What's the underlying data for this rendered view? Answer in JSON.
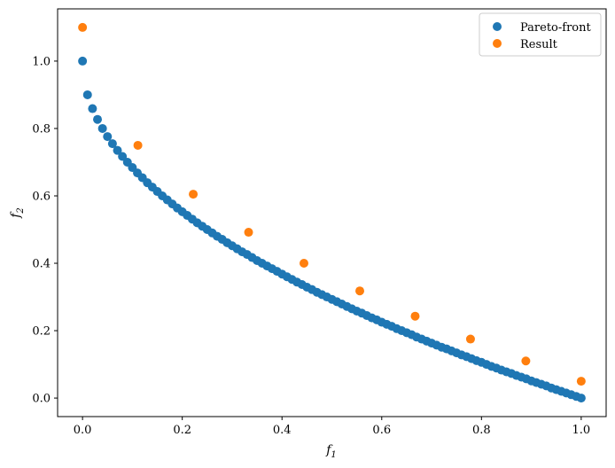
{
  "chart_data": {
    "type": "scatter",
    "title": "",
    "xlabel": "f",
    "xlabel_sub": "1",
    "ylabel": "f",
    "ylabel_sub": "2",
    "xlim": [
      -0.05,
      1.05
    ],
    "ylim": [
      -0.055,
      1.155
    ],
    "x_ticks": [
      0.0,
      0.2,
      0.4,
      0.6,
      0.8,
      1.0
    ],
    "x_tick_labels": [
      "0.0",
      "0.2",
      "0.4",
      "0.6",
      "0.8",
      "1.0"
    ],
    "y_ticks": [
      0.0,
      0.2,
      0.4,
      0.6,
      0.8,
      1.0
    ],
    "y_tick_labels": [
      "0.0",
      "0.2",
      "0.4",
      "0.6",
      "0.8",
      "1.0"
    ],
    "grid": false,
    "legend_position": "top-right",
    "series": [
      {
        "name": "Pareto-front",
        "color": "#1f77b4",
        "x": [
          0.0,
          0.01,
          0.02,
          0.03,
          0.04,
          0.05,
          0.06,
          0.07,
          0.08,
          0.09,
          0.1,
          0.11,
          0.12,
          0.13,
          0.14,
          0.15,
          0.16,
          0.17,
          0.18,
          0.19,
          0.2,
          0.21,
          0.22,
          0.23,
          0.24,
          0.25,
          0.26,
          0.27,
          0.28,
          0.29,
          0.3,
          0.31,
          0.32,
          0.33,
          0.34,
          0.35,
          0.36,
          0.37,
          0.38,
          0.39,
          0.4,
          0.41,
          0.42,
          0.43,
          0.44,
          0.45,
          0.46,
          0.47,
          0.48,
          0.49,
          0.5,
          0.51,
          0.52,
          0.53,
          0.54,
          0.55,
          0.56,
          0.57,
          0.58,
          0.59,
          0.6,
          0.61,
          0.62,
          0.63,
          0.64,
          0.65,
          0.66,
          0.67,
          0.68,
          0.69,
          0.7,
          0.71,
          0.72,
          0.73,
          0.74,
          0.75,
          0.76,
          0.77,
          0.78,
          0.79,
          0.8,
          0.81,
          0.82,
          0.83,
          0.84,
          0.85,
          0.86,
          0.87,
          0.88,
          0.89,
          0.9,
          0.91,
          0.92,
          0.93,
          0.94,
          0.95,
          0.96,
          0.97,
          0.98,
          0.99,
          1.0
        ],
        "y": [
          1.0,
          0.9,
          0.859,
          0.827,
          0.8,
          0.776,
          0.755,
          0.735,
          0.717,
          0.7,
          0.684,
          0.668,
          0.654,
          0.639,
          0.626,
          0.613,
          0.6,
          0.588,
          0.576,
          0.564,
          0.553,
          0.542,
          0.531,
          0.52,
          0.51,
          0.5,
          0.49,
          0.48,
          0.471,
          0.461,
          0.452,
          0.443,
          0.434,
          0.426,
          0.417,
          0.408,
          0.4,
          0.392,
          0.384,
          0.376,
          0.368,
          0.36,
          0.352,
          0.344,
          0.337,
          0.329,
          0.322,
          0.314,
          0.307,
          0.3,
          0.293,
          0.286,
          0.279,
          0.272,
          0.265,
          0.258,
          0.252,
          0.245,
          0.238,
          0.232,
          0.225,
          0.219,
          0.213,
          0.206,
          0.2,
          0.194,
          0.188,
          0.181,
          0.175,
          0.169,
          0.163,
          0.157,
          0.151,
          0.146,
          0.14,
          0.134,
          0.128,
          0.123,
          0.117,
          0.111,
          0.106,
          0.1,
          0.094,
          0.089,
          0.083,
          0.078,
          0.073,
          0.067,
          0.062,
          0.057,
          0.051,
          0.046,
          0.041,
          0.036,
          0.03,
          0.025,
          0.02,
          0.015,
          0.01,
          0.005,
          0.0
        ]
      },
      {
        "name": "Result",
        "color": "#ff7f0e",
        "x": [
          0.0,
          0.111,
          0.222,
          0.333,
          0.444,
          0.556,
          0.667,
          0.778,
          0.889,
          1.0
        ],
        "y": [
          1.1,
          0.75,
          0.605,
          0.492,
          0.4,
          0.318,
          0.243,
          0.175,
          0.11,
          0.05
        ]
      }
    ]
  }
}
